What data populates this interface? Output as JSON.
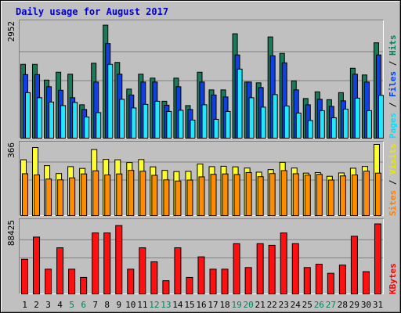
{
  "chart_data": {
    "type": "bar",
    "title": "Daily usage for August 2017",
    "categories": [
      "1",
      "2",
      "3",
      "4",
      "5",
      "6",
      "7",
      "8",
      "9",
      "10",
      "11",
      "12",
      "13",
      "14",
      "15",
      "16",
      "17",
      "18",
      "19",
      "20",
      "21",
      "22",
      "23",
      "24",
      "25",
      "26",
      "27",
      "28",
      "29",
      "30",
      "31"
    ],
    "weekend_days": [
      "5",
      "6",
      "12",
      "13",
      "19",
      "20",
      "26",
      "27"
    ],
    "panels": [
      {
        "id": "hits-files-pages",
        "max_label": "2952",
        "ylim": [
          0,
          2952
        ],
        "legend": [
          {
            "name": "Pages",
            "color": "#00e0ff"
          },
          {
            "sep": " / "
          },
          {
            "name": "Files",
            "color": "#0040ff"
          },
          {
            "sep": " / "
          },
          {
            "name": "Hits",
            "color": "#00805c"
          }
        ],
        "series": [
          {
            "name": "Hits",
            "color": "#1a7a5a",
            "values": [
              1900,
              1900,
              1500,
              1700,
              1650,
              870,
              1930,
              2900,
              1950,
              1270,
              1650,
              1550,
              960,
              1550,
              850,
              1700,
              1250,
              1250,
              2680,
              1450,
              1430,
              2600,
              2180,
              1480,
              1030,
              1200,
              1000,
              1180,
              1800,
              1630,
              2450
            ]
          },
          {
            "name": "Files",
            "color": "#1040e0",
            "values": [
              1640,
              1640,
              1330,
              1240,
              1050,
              750,
              1450,
              2430,
              1650,
              1120,
              1450,
              1450,
              860,
              1330,
              750,
              1450,
              1120,
              1070,
              2140,
              1450,
              1310,
              2120,
              1940,
              1250,
              870,
              1010,
              830,
              970,
              1650,
              1450,
              2140
            ]
          },
          {
            "name": "Pages",
            "color": "#20e8ff",
            "values": [
              1180,
              1050,
              940,
              850,
              930,
              560,
              670,
              1900,
              1010,
              790,
              880,
              960,
              700,
              730,
              480,
              870,
              500,
              700,
              1780,
              1050,
              810,
              1130,
              840,
              660,
              470,
              720,
              540,
              760,
              1040,
              720,
              1110
            ]
          }
        ]
      },
      {
        "id": "visits-sites",
        "max_label": "366",
        "ylim": [
          0,
          366
        ],
        "legend": [
          {
            "name": "Sites",
            "color": "#ff8000"
          },
          {
            "sep": " / "
          },
          {
            "name": "Visits",
            "color": "#e8e800"
          }
        ],
        "series": [
          {
            "name": "Visits",
            "color": "#ffff30",
            "values": [
              288,
              350,
              258,
              218,
              253,
              244,
              340,
              290,
              288,
              274,
              289,
              252,
              234,
              228,
              229,
              266,
              253,
              255,
              252,
              246,
              225,
              238,
              275,
              246,
              220,
              223,
              204,
              221,
              245,
              254,
              366
            ]
          },
          {
            "name": "Sites",
            "color": "#ff8c00",
            "values": [
              217,
              211,
              190,
              186,
              196,
              216,
              232,
              211,
              216,
              234,
              230,
              209,
              186,
              180,
              185,
              201,
              214,
              216,
              213,
              223,
              202,
              218,
              233,
              217,
              210,
              214,
              185,
              206,
              211,
              230,
              220
            ]
          }
        ]
      },
      {
        "id": "kbytes",
        "max_label": "88425",
        "ylim": [
          0,
          88425
        ],
        "legend": [
          {
            "name": "KBytes",
            "color": "#ff0000"
          }
        ],
        "series": [
          {
            "name": "KBytes",
            "color": "#ff1010",
            "values": [
              43000,
              70000,
              31000,
              57000,
              31000,
              21000,
              75000,
              75000,
              84000,
              31000,
              57000,
              40000,
              17000,
              57000,
              21000,
              46000,
              31000,
              31000,
              62000,
              33000,
              62000,
              60000,
              75000,
              62000,
              33000,
              37000,
              26000,
              36000,
              71000,
              28000,
              86000
            ]
          }
        ]
      }
    ]
  }
}
